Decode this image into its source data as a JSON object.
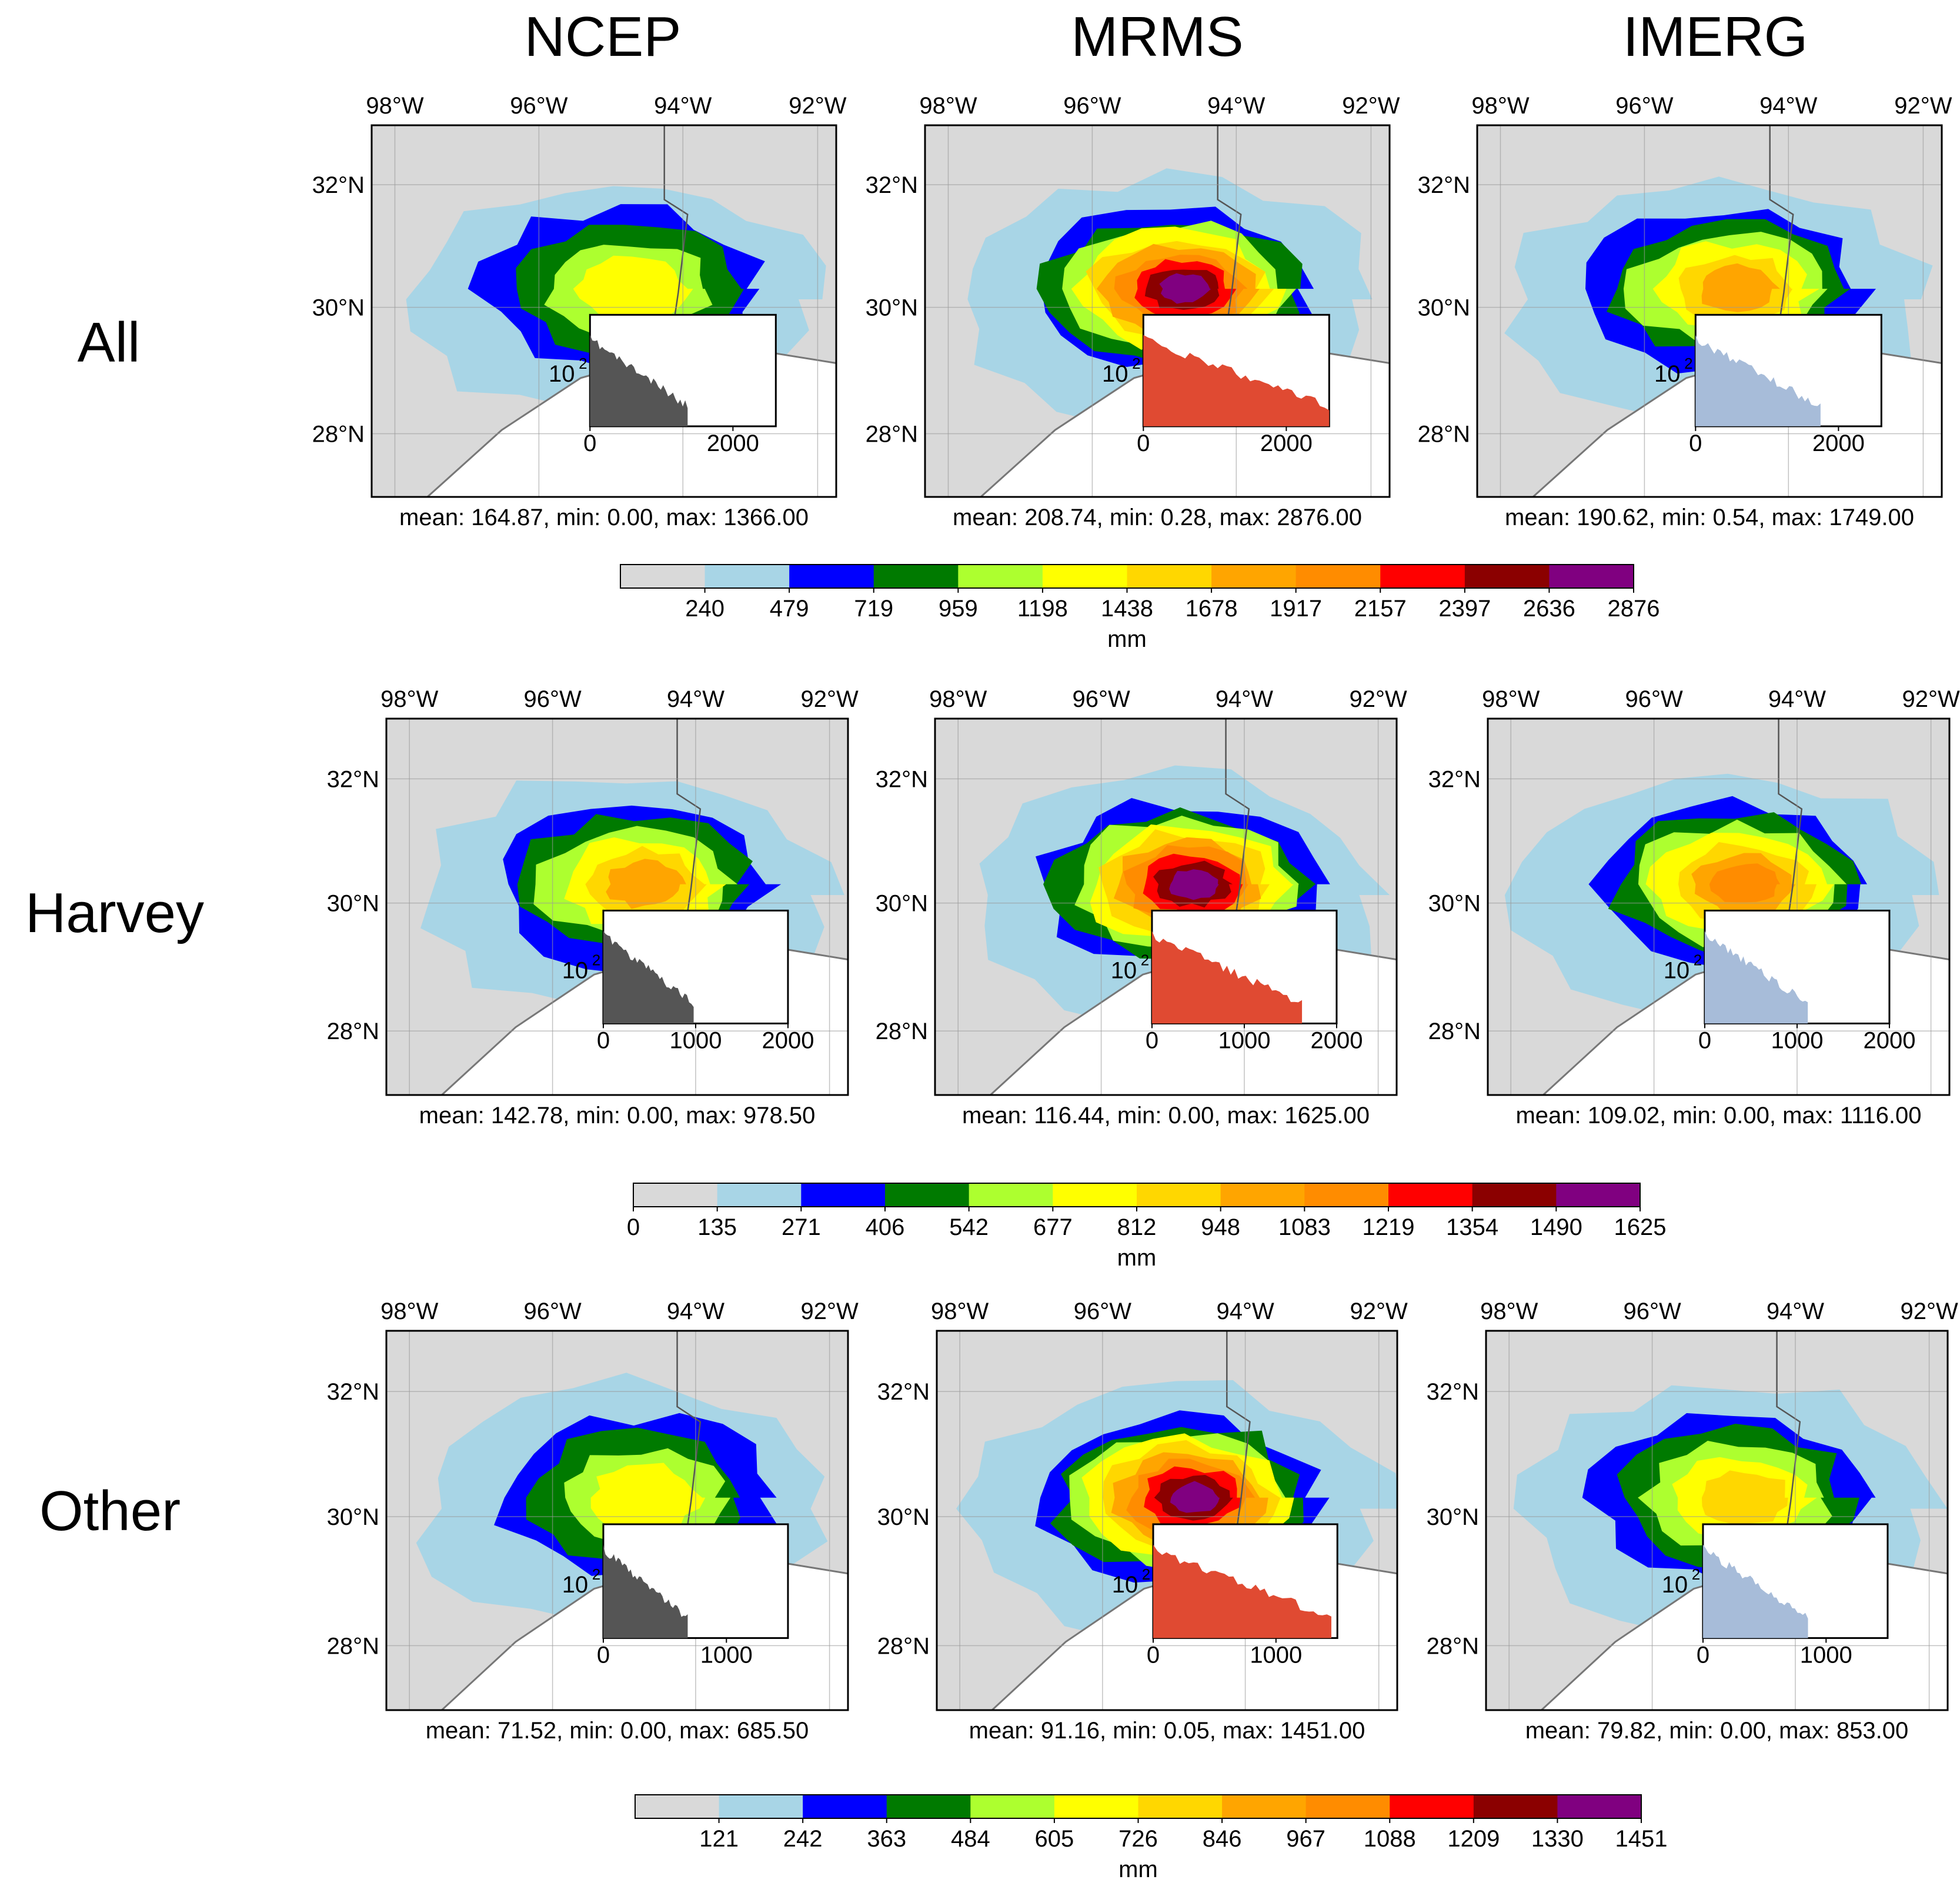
{
  "columns": [
    "NCEP",
    "MRMS",
    "IMERG"
  ],
  "rows": [
    "All",
    "Harvey",
    "Other"
  ],
  "lon_labels": [
    "98°W",
    "96°W",
    "94°W",
    "92°W"
  ],
  "lat_labels": [
    "32°N",
    "30°N",
    "28°N"
  ],
  "inset_ylabel": "10",
  "inset_ylabel_exp": "2",
  "unit": "mm",
  "colors": [
    "#d9d9d9",
    "#a8d5e6",
    "#0000ff",
    "#007a00",
    "#adff2f",
    "#ffff00",
    "#ffd700",
    "#ffa500",
    "#ff8c00",
    "#ff0000",
    "#8b0000",
    "#800080"
  ],
  "hist_colors": {
    "NCEP": "#555555",
    "MRMS": "#e04a32",
    "IMERG": "#a7bcd9"
  },
  "chart_data": [
    {
      "type": "heatmap",
      "row": "All",
      "colorbar_ticks": [
        "240",
        "479",
        "719",
        "959",
        "1198",
        "1438",
        "1678",
        "1917",
        "2157",
        "2397",
        "2636",
        "2876"
      ],
      "colorbar_range": [
        0,
        2876
      ],
      "panels": [
        {
          "name": "NCEP",
          "stats": "mean: 164.87, min: 0.00, max: 1366.00",
          "hist_xticks": [
            "0",
            "2000"
          ],
          "hist_xlim": [
            0,
            2600
          ],
          "max": 1366
        },
        {
          "name": "MRMS",
          "stats": "mean: 208.74, min: 0.28, max: 2876.00",
          "hist_xticks": [
            "0",
            "2000"
          ],
          "hist_xlim": [
            0,
            2600
          ],
          "max": 2876
        },
        {
          "name": "IMERG",
          "stats": "mean: 190.62, min: 0.54, max: 1749.00",
          "hist_xticks": [
            "0",
            "2000"
          ],
          "hist_xlim": [
            0,
            2600
          ],
          "max": 1749
        }
      ]
    },
    {
      "type": "heatmap",
      "row": "Harvey",
      "colorbar_ticks": [
        "0",
        "135",
        "271",
        "406",
        "542",
        "677",
        "812",
        "948",
        "1083",
        "1219",
        "1354",
        "1490",
        "1625"
      ],
      "colorbar_range": [
        0,
        1625
      ],
      "panels": [
        {
          "name": "NCEP",
          "stats": "mean: 142.78, min: 0.00, max: 978.50",
          "hist_xticks": [
            "0",
            "1000",
            "2000"
          ],
          "hist_xlim": [
            0,
            2000
          ],
          "max": 978.5
        },
        {
          "name": "MRMS",
          "stats": "mean: 116.44, min: 0.00, max: 1625.00",
          "hist_xticks": [
            "0",
            "1000",
            "2000"
          ],
          "hist_xlim": [
            0,
            2000
          ],
          "max": 1625
        },
        {
          "name": "IMERG",
          "stats": "mean: 109.02, min: 0.00, max: 1116.00",
          "hist_xticks": [
            "0",
            "1000",
            "2000"
          ],
          "hist_xlim": [
            0,
            2000
          ],
          "max": 1116
        }
      ]
    },
    {
      "type": "heatmap",
      "row": "Other",
      "colorbar_ticks": [
        "121",
        "242",
        "363",
        "484",
        "605",
        "726",
        "846",
        "967",
        "1088",
        "1209",
        "1330",
        "1451"
      ],
      "colorbar_range": [
        0,
        1451
      ],
      "panels": [
        {
          "name": "NCEP",
          "stats": "mean: 71.52, min: 0.00, max: 685.50",
          "hist_xticks": [
            "0",
            "1000"
          ],
          "hist_xlim": [
            0,
            1500
          ],
          "max": 685.5
        },
        {
          "name": "MRMS",
          "stats": "mean: 91.16, min: 0.05, max: 1451.00",
          "hist_xticks": [
            "0",
            "1000"
          ],
          "hist_xlim": [
            0,
            1500
          ],
          "max": 1451
        },
        {
          "name": "IMERG",
          "stats": "mean: 79.82, min: 0.00, max: 853.00",
          "hist_xticks": [
            "0",
            "1000"
          ],
          "hist_xlim": [
            0,
            1500
          ],
          "max": 853
        }
      ]
    }
  ]
}
